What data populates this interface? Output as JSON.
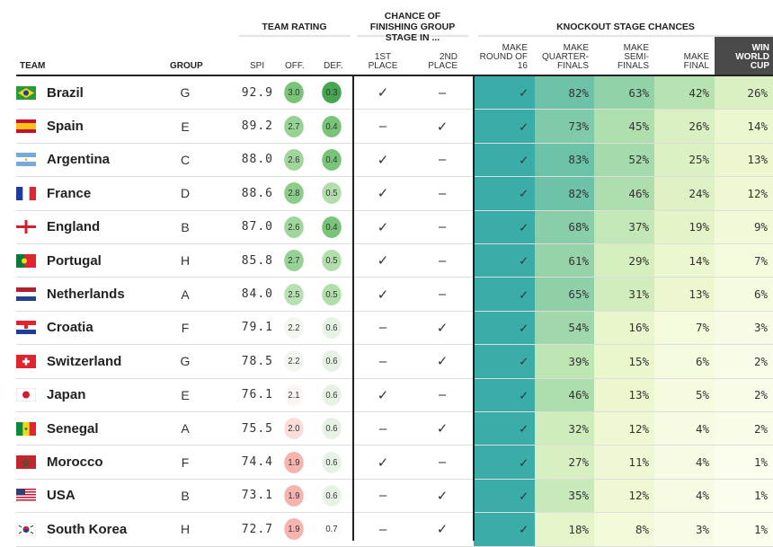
{
  "headers": {
    "team_rating": "TEAM RATING",
    "group_stage": "CHANCE OF FINISHING GROUP STAGE IN ...",
    "knockout": "KNOCKOUT STAGE CHANCES",
    "team": "TEAM",
    "group": "GROUP",
    "spi": "SPI",
    "off": "OFF.",
    "def": "DEF.",
    "first": [
      "1ST",
      "PLACE"
    ],
    "second": [
      "2ND",
      "PLACE"
    ],
    "r16": [
      "MAKE",
      "ROUND OF",
      "16"
    ],
    "qf": [
      "MAKE",
      "QUARTER-",
      "FINALS"
    ],
    "sf": [
      "MAKE",
      "SEMI-",
      "FINALS"
    ],
    "final": [
      "MAKE",
      "FINAL"
    ],
    "win": [
      "WIN",
      "WORLD",
      "CUP"
    ]
  },
  "symbols": {
    "check": "✓",
    "dash": "–"
  },
  "colors": {
    "win_header_bg": "#4a4a4a",
    "round16_bg": "#3aada8"
  },
  "teams": [
    {
      "name": "Brazil",
      "flag": "brazil-flag",
      "group": "G",
      "spi": "92.9",
      "off": "3.0",
      "def": "0.3",
      "first": "✓",
      "second": "–",
      "r16": "✓",
      "qf": "82%",
      "sf": "63%",
      "final": "42%",
      "win": "26%"
    },
    {
      "name": "Spain",
      "flag": "spain-flag",
      "group": "E",
      "spi": "89.2",
      "off": "2.7",
      "def": "0.4",
      "first": "–",
      "second": "✓",
      "r16": "✓",
      "qf": "73%",
      "sf": "45%",
      "final": "26%",
      "win": "14%"
    },
    {
      "name": "Argentina",
      "flag": "argentina-flag",
      "group": "C",
      "spi": "88.0",
      "off": "2.6",
      "def": "0.4",
      "first": "✓",
      "second": "–",
      "r16": "✓",
      "qf": "83%",
      "sf": "52%",
      "final": "25%",
      "win": "13%"
    },
    {
      "name": "France",
      "flag": "france-flag",
      "group": "D",
      "spi": "88.6",
      "off": "2.8",
      "def": "0.5",
      "first": "✓",
      "second": "–",
      "r16": "✓",
      "qf": "82%",
      "sf": "46%",
      "final": "24%",
      "win": "12%"
    },
    {
      "name": "England",
      "flag": "england-flag",
      "group": "B",
      "spi": "87.0",
      "off": "2.6",
      "def": "0.4",
      "first": "✓",
      "second": "–",
      "r16": "✓",
      "qf": "68%",
      "sf": "37%",
      "final": "19%",
      "win": "9%"
    },
    {
      "name": "Portugal",
      "flag": "portugal-flag",
      "group": "H",
      "spi": "85.8",
      "off": "2.7",
      "def": "0.5",
      "first": "✓",
      "second": "–",
      "r16": "✓",
      "qf": "61%",
      "sf": "29%",
      "final": "14%",
      "win": "7%"
    },
    {
      "name": "Netherlands",
      "flag": "netherlands-flag",
      "group": "A",
      "spi": "84.0",
      "off": "2.5",
      "def": "0.5",
      "first": "✓",
      "second": "–",
      "r16": "✓",
      "qf": "65%",
      "sf": "31%",
      "final": "13%",
      "win": "6%"
    },
    {
      "name": "Croatia",
      "flag": "croatia-flag",
      "group": "F",
      "spi": "79.1",
      "off": "2.2",
      "def": "0.6",
      "first": "–",
      "second": "✓",
      "r16": "✓",
      "qf": "54%",
      "sf": "16%",
      "final": "7%",
      "win": "3%"
    },
    {
      "name": "Switzerland",
      "flag": "switzerland-flag",
      "group": "G",
      "spi": "78.5",
      "off": "2.2",
      "def": "0.6",
      "first": "–",
      "second": "✓",
      "r16": "✓",
      "qf": "39%",
      "sf": "15%",
      "final": "6%",
      "win": "2%"
    },
    {
      "name": "Japan",
      "flag": "japan-flag",
      "group": "E",
      "spi": "76.1",
      "off": "2.1",
      "def": "0.6",
      "first": "✓",
      "second": "–",
      "r16": "✓",
      "qf": "46%",
      "sf": "13%",
      "final": "5%",
      "win": "2%"
    },
    {
      "name": "Senegal",
      "flag": "senegal-flag",
      "group": "A",
      "spi": "75.5",
      "off": "2.0",
      "def": "0.6",
      "first": "–",
      "second": "✓",
      "r16": "✓",
      "qf": "32%",
      "sf": "12%",
      "final": "4%",
      "win": "2%"
    },
    {
      "name": "Morocco",
      "flag": "morocco-flag",
      "group": "F",
      "spi": "74.4",
      "off": "1.9",
      "def": "0.6",
      "first": "✓",
      "second": "–",
      "r16": "✓",
      "qf": "27%",
      "sf": "11%",
      "final": "4%",
      "win": "1%"
    },
    {
      "name": "USA",
      "flag": "usa-flag",
      "group": "B",
      "spi": "73.1",
      "off": "1.9",
      "def": "0.6",
      "first": "–",
      "second": "✓",
      "r16": "✓",
      "qf": "35%",
      "sf": "12%",
      "final": "4%",
      "win": "1%"
    },
    {
      "name": "South Korea",
      "flag": "south-korea-flag",
      "group": "H",
      "spi": "72.7",
      "off": "1.9",
      "def": "0.7",
      "first": "–",
      "second": "✓",
      "r16": "✓",
      "qf": "18%",
      "sf": "8%",
      "final": "3%",
      "win": "1%"
    }
  ]
}
